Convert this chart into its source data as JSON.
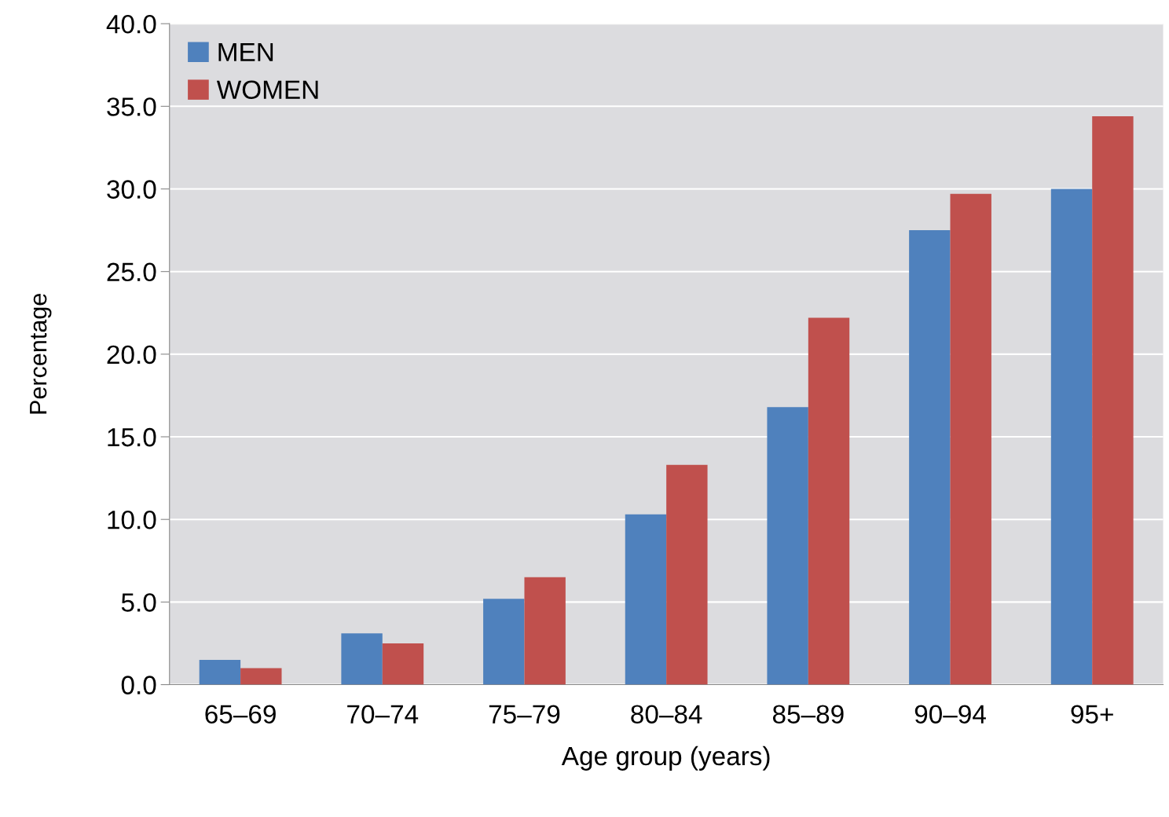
{
  "chart_data": {
    "type": "bar",
    "xlabel": "Age group (years)",
    "ylabel": "Percentage",
    "categories": [
      "65–69",
      "70–74",
      "75–79",
      "80–84",
      "85–89",
      "90–94",
      "95+"
    ],
    "series": [
      {
        "name": "MEN",
        "color": "#4f81bd",
        "values": [
          1.5,
          3.1,
          5.2,
          10.3,
          16.8,
          27.5,
          30.0
        ]
      },
      {
        "name": "WOMEN",
        "color": "#c0504d",
        "values": [
          1.0,
          2.5,
          6.5,
          13.3,
          22.2,
          29.7,
          34.4
        ]
      }
    ],
    "ylim": [
      0,
      40
    ],
    "yticks": [
      {
        "value": 0,
        "label": "0.0"
      },
      {
        "value": 5,
        "label": "5.0"
      },
      {
        "value": 10,
        "label": "10.0"
      },
      {
        "value": 15,
        "label": "15.0"
      },
      {
        "value": 20,
        "label": "20.0"
      },
      {
        "value": 25,
        "label": "25.0"
      },
      {
        "value": 30,
        "label": "30.0"
      },
      {
        "value": 35,
        "label": "35.0"
      },
      {
        "value": 40,
        "label": "40.0"
      }
    ],
    "grid": "y",
    "legend": "top left"
  }
}
